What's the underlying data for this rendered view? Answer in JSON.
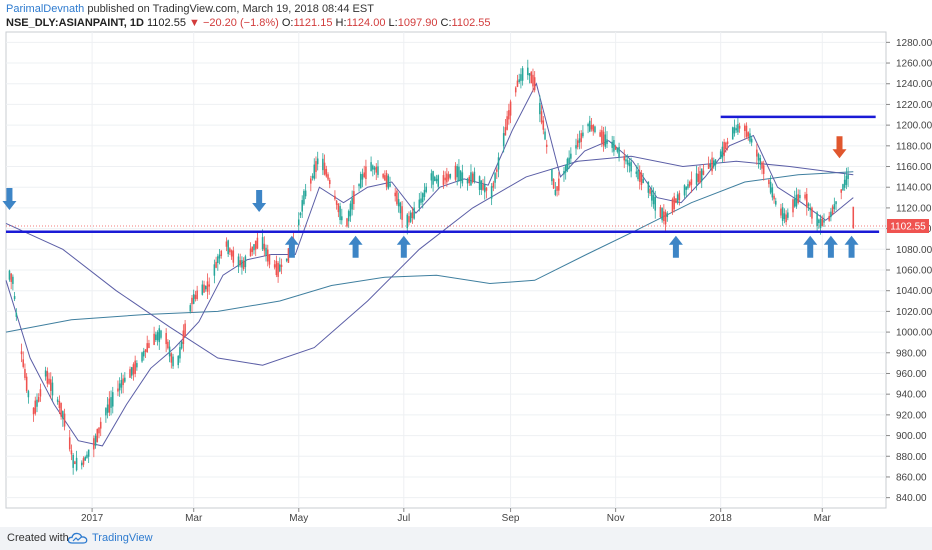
{
  "header": {
    "author": "ParimalDevnath",
    "published": "published on TradingView.com, March 19, 2018 08:44 EST",
    "symbol": "NSE_DLY:ASIANPAINT, 1D",
    "last": "1102.55",
    "change": "−20.20 (−1.8%)",
    "open_label": "O:",
    "open": "1121.15",
    "high_label": "H:",
    "high": "1124.00",
    "low_label": "L:",
    "low": "1097.90",
    "close_label": "C:",
    "close": "1102.55"
  },
  "footer": {
    "created": "Created with",
    "brand": "TradingView",
    "brand_icon": "tradingview-cloud-icon"
  },
  "colors": {
    "up": "#26a69a",
    "down": "#ef5350",
    "ma_fast": "#5b5ea6",
    "ma_slow": "#3f7f9f",
    "support": "#1a1ad6",
    "arrow_up": "#3d85c6",
    "arrow_down": "#e0562d",
    "price_tag": "#ef5350"
  },
  "chart_data": {
    "type": "candlestick",
    "ylim": [
      830,
      1290
    ],
    "y_ticks": [
      840,
      860,
      880,
      900,
      920,
      940,
      960,
      980,
      1000,
      1020,
      1040,
      1060,
      1080,
      1100,
      1120,
      1140,
      1160,
      1180,
      1200,
      1220,
      1240,
      1260,
      1280
    ],
    "x_ticks": [
      {
        "label": "2017",
        "date": "2017-01-01"
      },
      {
        "label": "Mar",
        "date": "2017-03-01"
      },
      {
        "label": "May",
        "date": "2017-05-01"
      },
      {
        "label": "Jul",
        "date": "2017-07-01"
      },
      {
        "label": "Sep",
        "date": "2017-09-01"
      },
      {
        "label": "Nov",
        "date": "2017-11-01"
      },
      {
        "label": "2018",
        "date": "2018-01-01"
      },
      {
        "label": "Mar",
        "date": "2018-03-01"
      }
    ],
    "x_range": [
      "2016-11-12",
      "2018-04-07"
    ],
    "last_price": 1102.55,
    "price_path": [
      [
        "2016-11-12",
        1060
      ],
      [
        "2016-11-16",
        1050
      ],
      [
        "2016-11-19",
        1000
      ],
      [
        "2016-11-23",
        960
      ],
      [
        "2016-11-27",
        920
      ],
      [
        "2016-12-01",
        935
      ],
      [
        "2016-12-05",
        960
      ],
      [
        "2016-12-09",
        945
      ],
      [
        "2016-12-13",
        930
      ],
      [
        "2016-12-17",
        910
      ],
      [
        "2016-12-21",
        875
      ],
      [
        "2016-12-25",
        870
      ],
      [
        "2016-12-29",
        880
      ],
      [
        "2017-01-03",
        895
      ],
      [
        "2017-01-08",
        920
      ],
      [
        "2017-01-13",
        935
      ],
      [
        "2017-01-18",
        950
      ],
      [
        "2017-01-23",
        960
      ],
      [
        "2017-01-28",
        970
      ],
      [
        "2017-02-02",
        985
      ],
      [
        "2017-02-07",
        995
      ],
      [
        "2017-02-12",
        1000
      ],
      [
        "2017-02-16",
        975
      ],
      [
        "2017-02-19",
        965
      ],
      [
        "2017-02-23",
        995
      ],
      [
        "2017-02-28",
        1030
      ],
      [
        "2017-03-05",
        1040
      ],
      [
        "2017-03-10",
        1045
      ],
      [
        "2017-03-15",
        1070
      ],
      [
        "2017-03-20",
        1085
      ],
      [
        "2017-03-25",
        1070
      ],
      [
        "2017-03-30",
        1065
      ],
      [
        "2017-04-04",
        1080
      ],
      [
        "2017-04-09",
        1090
      ],
      [
        "2017-04-14",
        1070
      ],
      [
        "2017-04-19",
        1060
      ],
      [
        "2017-04-24",
        1070
      ],
      [
        "2017-04-29",
        1090
      ],
      [
        "2017-05-04",
        1130
      ],
      [
        "2017-05-09",
        1150
      ],
      [
        "2017-05-13",
        1170
      ],
      [
        "2017-05-18",
        1150
      ],
      [
        "2017-05-23",
        1125
      ],
      [
        "2017-05-28",
        1100
      ],
      [
        "2017-06-02",
        1130
      ],
      [
        "2017-06-07",
        1150
      ],
      [
        "2017-06-12",
        1160
      ],
      [
        "2017-06-17",
        1155
      ],
      [
        "2017-06-22",
        1145
      ],
      [
        "2017-06-27",
        1130
      ],
      [
        "2017-07-02",
        1105
      ],
      [
        "2017-07-07",
        1115
      ],
      [
        "2017-07-12",
        1130
      ],
      [
        "2017-07-17",
        1150
      ],
      [
        "2017-07-22",
        1145
      ],
      [
        "2017-07-27",
        1150
      ],
      [
        "2017-08-01",
        1155
      ],
      [
        "2017-08-06",
        1145
      ],
      [
        "2017-08-11",
        1150
      ],
      [
        "2017-08-16",
        1140
      ],
      [
        "2017-08-21",
        1135
      ],
      [
        "2017-08-26",
        1170
      ],
      [
        "2017-08-31",
        1210
      ],
      [
        "2017-09-05",
        1240
      ],
      [
        "2017-09-10",
        1255
      ],
      [
        "2017-09-15",
        1240
      ],
      [
        "2017-09-20",
        1200
      ],
      [
        "2017-09-24",
        1160
      ],
      [
        "2017-09-27",
        1135
      ],
      [
        "2017-10-01",
        1150
      ],
      [
        "2017-10-06",
        1170
      ],
      [
        "2017-10-11",
        1185
      ],
      [
        "2017-10-16",
        1200
      ],
      [
        "2017-10-21",
        1195
      ],
      [
        "2017-10-26",
        1185
      ],
      [
        "2017-10-31",
        1180
      ],
      [
        "2017-11-05",
        1170
      ],
      [
        "2017-11-10",
        1160
      ],
      [
        "2017-11-15",
        1150
      ],
      [
        "2017-11-20",
        1140
      ],
      [
        "2017-11-25",
        1120
      ],
      [
        "2017-11-30",
        1110
      ],
      [
        "2017-12-05",
        1125
      ],
      [
        "2017-12-10",
        1135
      ],
      [
        "2017-12-15",
        1145
      ],
      [
        "2017-12-20",
        1150
      ],
      [
        "2017-12-25",
        1160
      ],
      [
        "2017-12-30",
        1165
      ],
      [
        "2018-01-04",
        1180
      ],
      [
        "2018-01-09",
        1195
      ],
      [
        "2018-01-14",
        1200
      ],
      [
        "2018-01-19",
        1185
      ],
      [
        "2018-01-24",
        1165
      ],
      [
        "2018-01-29",
        1145
      ],
      [
        "2018-02-03",
        1120
      ],
      [
        "2018-02-08",
        1110
      ],
      [
        "2018-02-13",
        1125
      ],
      [
        "2018-02-18",
        1135
      ],
      [
        "2018-02-23",
        1115
      ],
      [
        "2018-02-28",
        1105
      ],
      [
        "2018-03-05",
        1110
      ],
      [
        "2018-03-09",
        1125
      ],
      [
        "2018-03-13",
        1140
      ],
      [
        "2018-03-16",
        1150
      ],
      [
        "2018-03-19",
        1102.55
      ]
    ],
    "ma_fast": [
      [
        "2016-11-12",
        1050
      ],
      [
        "2016-11-26",
        975
      ],
      [
        "2016-12-10",
        930
      ],
      [
        "2016-12-24",
        895
      ],
      [
        "2017-01-07",
        890
      ],
      [
        "2017-01-21",
        930
      ],
      [
        "2017-02-04",
        965
      ],
      [
        "2017-02-18",
        985
      ],
      [
        "2017-03-04",
        1010
      ],
      [
        "2017-03-18",
        1055
      ],
      [
        "2017-04-01",
        1070
      ],
      [
        "2017-04-15",
        1075
      ],
      [
        "2017-04-29",
        1075
      ],
      [
        "2017-05-13",
        1140
      ],
      [
        "2017-05-27",
        1125
      ],
      [
        "2017-06-10",
        1140
      ],
      [
        "2017-06-24",
        1145
      ],
      [
        "2017-07-08",
        1115
      ],
      [
        "2017-07-22",
        1140
      ],
      [
        "2017-08-05",
        1148
      ],
      [
        "2017-08-19",
        1142
      ],
      [
        "2017-09-02",
        1195
      ],
      [
        "2017-09-16",
        1240
      ],
      [
        "2017-09-30",
        1150
      ],
      [
        "2017-10-14",
        1175
      ],
      [
        "2017-10-28",
        1185
      ],
      [
        "2017-11-11",
        1165
      ],
      [
        "2017-11-25",
        1130
      ],
      [
        "2017-12-09",
        1125
      ],
      [
        "2017-12-23",
        1150
      ],
      [
        "2018-01-06",
        1180
      ],
      [
        "2018-01-20",
        1190
      ],
      [
        "2018-02-03",
        1140
      ],
      [
        "2018-02-17",
        1125
      ],
      [
        "2018-03-03",
        1108
      ],
      [
        "2018-03-19",
        1130
      ]
    ],
    "ma_mid": [
      [
        "2016-11-12",
        1105
      ],
      [
        "2016-12-15",
        1080
      ],
      [
        "2017-01-15",
        1040
      ],
      [
        "2017-02-15",
        1005
      ],
      [
        "2017-03-15",
        975
      ],
      [
        "2017-04-10",
        968
      ],
      [
        "2017-05-10",
        985
      ],
      [
        "2017-06-10",
        1030
      ],
      [
        "2017-07-10",
        1080
      ],
      [
        "2017-08-10",
        1120
      ],
      [
        "2017-09-10",
        1150
      ],
      [
        "2017-10-10",
        1165
      ],
      [
        "2017-11-10",
        1170
      ],
      [
        "2017-12-10",
        1160
      ],
      [
        "2018-01-10",
        1165
      ],
      [
        "2018-02-10",
        1160
      ],
      [
        "2018-03-19",
        1152
      ]
    ],
    "ma_slow": [
      [
        "2016-11-12",
        1000
      ],
      [
        "2016-12-20",
        1012
      ],
      [
        "2017-02-01",
        1017
      ],
      [
        "2017-03-15",
        1020
      ],
      [
        "2017-04-20",
        1030
      ],
      [
        "2017-05-20",
        1045
      ],
      [
        "2017-06-20",
        1053
      ],
      [
        "2017-07-20",
        1055
      ],
      [
        "2017-08-20",
        1047
      ],
      [
        "2017-09-15",
        1050
      ],
      [
        "2017-10-15",
        1075
      ],
      [
        "2017-11-15",
        1100
      ],
      [
        "2017-12-15",
        1125
      ],
      [
        "2018-01-15",
        1145
      ],
      [
        "2018-02-15",
        1152
      ],
      [
        "2018-03-19",
        1155
      ]
    ],
    "support_line": {
      "from": "2016-11-12",
      "to": "2018-04-03",
      "value": 1097
    },
    "resistance_line": {
      "from": "2018-01-01",
      "to": "2018-04-01",
      "value": 1208
    },
    "up_arrows": [
      "2017-04-27",
      "2017-06-03",
      "2017-07-01",
      "2017-12-06",
      "2018-02-22",
      "2018-03-06",
      "2018-03-18"
    ],
    "down_arrows": [
      {
        "date": "2016-11-14",
        "value": 1118,
        "color": "blue"
      },
      {
        "date": "2017-04-08",
        "value": 1116,
        "color": "blue"
      },
      {
        "date": "2018-03-11",
        "value": 1168,
        "color": "red"
      }
    ]
  }
}
